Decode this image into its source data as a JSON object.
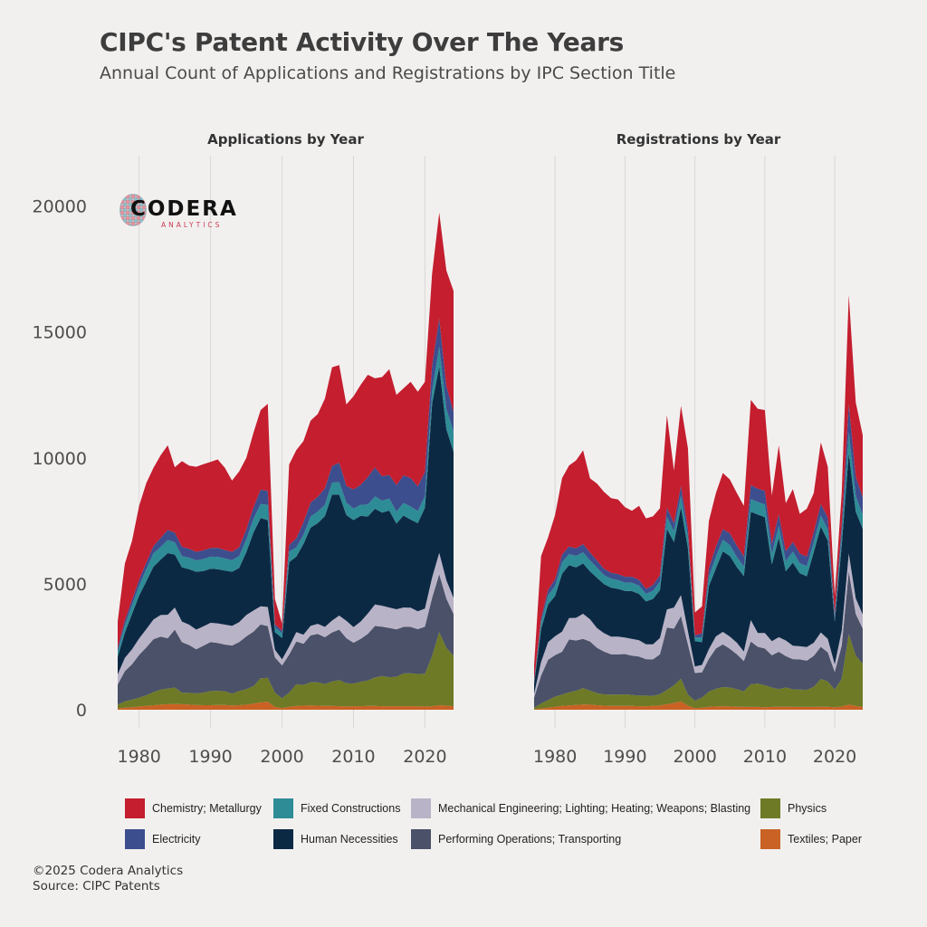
{
  "title": "CIPC's Patent Activity Over The Years",
  "subtitle": "Annual Count of Applications and Registrations by IPC Section Title",
  "footer": {
    "copyright": "©2025 Codera Analytics",
    "source": "Source: CIPC Patents"
  },
  "logo": {
    "text": "CODERA",
    "subtext": "ANALYTICS"
  },
  "colors": {
    "Chemistry; Metallurgy": "#c41e2f",
    "Electricity": "#3c4e8e",
    "Fixed Constructions": "#2e8c96",
    "Human Necessities": "#0c2944",
    "Mechanical Engineering; Lighting; Heating; Weapons; Blasting": "#b9b3c7",
    "Performing Operations; Transporting": "#4a5168",
    "Physics": "#6e7a26",
    "Textiles; Paper": "#c96224"
  },
  "legend": {
    "items": [
      "Chemistry; Metallurgy",
      "Fixed Constructions",
      "Mechanical Engineering; Lighting; Heating; Weapons; Blasting",
      "Physics",
      "Electricity",
      "Human Necessities",
      "Performing Operations; Transporting",
      "Textiles; Paper"
    ]
  },
  "chart_data": [
    {
      "type": "area",
      "stacked": true,
      "title": "Applications by Year",
      "xlabel": "",
      "ylabel": "",
      "xlim": [
        1977,
        2024
      ],
      "ylim": [
        0,
        22000
      ],
      "x_ticks": [
        1980,
        1990,
        2000,
        2010,
        2020
      ],
      "y_ticks": [
        0,
        5000,
        10000,
        15000,
        20000
      ],
      "grid": "vertical",
      "x": [
        1977,
        1978,
        1979,
        1980,
        1981,
        1982,
        1983,
        1984,
        1985,
        1986,
        1987,
        1988,
        1989,
        1990,
        1991,
        1992,
        1993,
        1994,
        1995,
        1996,
        1997,
        1998,
        1999,
        2000,
        2001,
        2002,
        2003,
        2004,
        2005,
        2006,
        2007,
        2008,
        2009,
        2010,
        2011,
        2012,
        2013,
        2014,
        2015,
        2016,
        2017,
        2018,
        2019,
        2020,
        2021,
        2022,
        2023,
        2024
      ],
      "series": [
        {
          "name": "Textiles; Paper",
          "values": [
            50,
            80,
            100,
            130,
            150,
            180,
            200,
            220,
            230,
            220,
            200,
            190,
            180,
            180,
            190,
            190,
            170,
            180,
            200,
            240,
            300,
            320,
            120,
            60,
            120,
            150,
            160,
            170,
            160,
            150,
            150,
            140,
            130,
            140,
            140,
            150,
            150,
            140,
            140,
            140,
            140,
            140,
            140,
            130,
            140,
            180,
            160,
            140
          ]
        },
        {
          "name": "Physics",
          "values": [
            150,
            250,
            300,
            350,
            420,
            520,
            600,
            620,
            650,
            460,
            470,
            460,
            500,
            560,
            560,
            540,
            470,
            560,
            620,
            700,
            950,
            950,
            560,
            400,
            560,
            860,
            830,
            920,
            930,
            870,
            970,
            1040,
            920,
            900,
            970,
            1010,
            1130,
            1200,
            1150,
            1170,
            1300,
            1310,
            1280,
            1300,
            2000,
            2900,
            2300,
            2000
          ]
        },
        {
          "name": "Performing Operations; Transporting",
          "values": [
            800,
            1200,
            1400,
            1700,
            1900,
            2100,
            2100,
            2000,
            2300,
            2000,
            1900,
            1750,
            1860,
            1950,
            1900,
            1860,
            1910,
            1950,
            2090,
            2160,
            2140,
            2050,
            1400,
            1300,
            1510,
            1700,
            1630,
            1860,
            1920,
            1860,
            1950,
            2000,
            1790,
            1620,
            1700,
            1850,
            2050,
            1960,
            1960,
            1880,
            1850,
            1840,
            1780,
            1870,
            2300,
            2300,
            1950,
            1660
          ]
        },
        {
          "name": "Mechanical Engineering; Lighting; Heating; Weapons; Blasting",
          "values": [
            400,
            530,
            600,
            650,
            730,
            780,
            860,
            930,
            880,
            820,
            810,
            780,
            770,
            760,
            780,
            790,
            780,
            790,
            850,
            840,
            720,
            760,
            300,
            240,
            320,
            370,
            360,
            380,
            400,
            410,
            470,
            560,
            690,
            620,
            690,
            810,
            850,
            830,
            810,
            800,
            770,
            760,
            710,
            720,
            810,
            850,
            730,
            640
          ]
        },
        {
          "name": "Human Necessities",
          "values": [
            700,
            1000,
            1400,
            1700,
            1900,
            2100,
            2200,
            2450,
            2100,
            2150,
            2200,
            2300,
            2200,
            2150,
            2150,
            2150,
            2150,
            2150,
            2500,
            3100,
            3500,
            3450,
            700,
            850,
            3350,
            3000,
            3600,
            3900,
            4000,
            4400,
            5000,
            4800,
            4200,
            4250,
            4200,
            3850,
            3800,
            3700,
            3850,
            3400,
            3650,
            3500,
            3500,
            4000,
            6900,
            7400,
            6000,
            5800
          ]
        },
        {
          "name": "Fixed Constructions",
          "values": [
            220,
            300,
            350,
            400,
            480,
            530,
            500,
            520,
            490,
            450,
            460,
            450,
            470,
            480,
            490,
            480,
            460,
            470,
            500,
            540,
            560,
            600,
            200,
            180,
            420,
            370,
            360,
            440,
            460,
            450,
            480,
            500,
            500,
            460,
            440,
            480,
            490,
            470,
            480,
            480,
            500,
            520,
            480,
            460,
            510,
            790,
            800,
            810
          ]
        },
        {
          "name": "Electricity",
          "values": [
            130,
            180,
            200,
            230,
            260,
            290,
            360,
            400,
            380,
            370,
            350,
            340,
            350,
            340,
            360,
            330,
            330,
            350,
            400,
            450,
            570,
            560,
            110,
            100,
            260,
            360,
            500,
            550,
            590,
            650,
            660,
            770,
            660,
            760,
            790,
            1090,
            1150,
            970,
            930,
            1050,
            1100,
            1130,
            980,
            960,
            1000,
            1120,
            900,
            780
          ]
        },
        {
          "name": "Chemistry; Metallurgy",
          "values": [
            1050,
            2260,
            2350,
            2940,
            3160,
            3100,
            3280,
            3360,
            2600,
            3400,
            3300,
            3380,
            3420,
            3420,
            3510,
            3270,
            2830,
            3010,
            2840,
            2970,
            3160,
            3460,
            1010,
            290,
            3200,
            3500,
            3230,
            3260,
            3280,
            3560,
            3920,
            3880,
            3230,
            3700,
            3970,
            4060,
            3540,
            3940,
            4200,
            3580,
            3450,
            3820,
            3760,
            3580,
            3650,
            4200,
            4600,
            4800
          ]
        }
      ]
    },
    {
      "type": "area",
      "stacked": true,
      "title": "Registrations by Year",
      "xlabel": "",
      "ylabel": "",
      "xlim": [
        1977,
        2024
      ],
      "ylim": [
        0,
        22000
      ],
      "x_ticks": [
        1980,
        1990,
        2000,
        2010,
        2020
      ],
      "y_ticks": [
        0,
        5000,
        10000,
        15000,
        20000
      ],
      "grid": "vertical",
      "x": [
        1977,
        1978,
        1979,
        1980,
        1981,
        1982,
        1983,
        1984,
        1985,
        1986,
        1987,
        1988,
        1989,
        1990,
        1991,
        1992,
        1993,
        1994,
        1995,
        1996,
        1997,
        1998,
        1999,
        2000,
        2001,
        2002,
        2003,
        2004,
        2005,
        2006,
        2007,
        2008,
        2009,
        2010,
        2011,
        2012,
        2013,
        2014,
        2015,
        2016,
        2017,
        2018,
        2019,
        2020,
        2021,
        2022,
        2023,
        2024
      ],
      "series": [
        {
          "name": "Textiles; Paper",
          "values": [
            20,
            50,
            80,
            120,
            150,
            170,
            190,
            210,
            200,
            180,
            160,
            150,
            150,
            150,
            150,
            140,
            140,
            150,
            170,
            220,
            270,
            330,
            160,
            60,
            80,
            120,
            130,
            140,
            130,
            120,
            110,
            110,
            110,
            100,
            110,
            120,
            120,
            110,
            110,
            110,
            110,
            120,
            120,
            100,
            130,
            200,
            150,
            120
          ]
        },
        {
          "name": "Physics",
          "values": [
            60,
            200,
            300,
            400,
            450,
            520,
            560,
            650,
            560,
            480,
            450,
            450,
            450,
            460,
            440,
            420,
            420,
            400,
            450,
            560,
            700,
            900,
            440,
            300,
            400,
            600,
            700,
            760,
            750,
            700,
            620,
            900,
            930,
            870,
            770,
            700,
            760,
            700,
            690,
            680,
            800,
            1100,
            1000,
            700,
            1100,
            2800,
            2000,
            1700
          ]
        },
        {
          "name": "Performing Operations; Transporting",
          "values": [
            400,
            1100,
            1600,
            1650,
            1700,
            2100,
            2000,
            1950,
            1950,
            1800,
            1700,
            1600,
            1600,
            1600,
            1560,
            1550,
            1450,
            1450,
            1580,
            2480,
            2250,
            2490,
            2000,
            1100,
            1000,
            1300,
            1600,
            1700,
            1540,
            1380,
            1200,
            1700,
            1460,
            1460,
            1280,
            1480,
            1250,
            1200,
            1200,
            1160,
            1230,
            1280,
            1160,
            700,
            1320,
            2500,
            1650,
            1400
          ]
        },
        {
          "name": "Mechanical Engineering; Lighting; Heating; Weapons; Blasting",
          "values": [
            150,
            550,
            700,
            750,
            800,
            850,
            900,
            1000,
            880,
            780,
            730,
            700,
            700,
            660,
            660,
            650,
            590,
            600,
            650,
            720,
            840,
            830,
            520,
            260,
            300,
            390,
            480,
            490,
            480,
            460,
            380,
            850,
            550,
            620,
            560,
            580,
            620,
            530,
            520,
            540,
            520,
            570,
            530,
            300,
            590,
            700,
            620,
            560
          ]
        },
        {
          "name": "Human Necessities",
          "values": [
            400,
            1300,
            1500,
            1600,
            2300,
            2100,
            2000,
            2000,
            1900,
            2000,
            1950,
            1950,
            1900,
            1850,
            1900,
            1840,
            1700,
            1800,
            1900,
            3200,
            2600,
            3500,
            3300,
            1000,
            900,
            2500,
            2700,
            3200,
            3200,
            3000,
            3000,
            4300,
            4700,
            4600,
            3050,
            3950,
            2750,
            3300,
            2900,
            2810,
            3600,
            4200,
            3900,
            1700,
            3400,
            4000,
            3450,
            3400
          ]
        },
        {
          "name": "Fixed Constructions",
          "values": [
            80,
            280,
            360,
            400,
            460,
            440,
            460,
            440,
            440,
            400,
            360,
            350,
            350,
            330,
            330,
            330,
            300,
            320,
            340,
            480,
            420,
            460,
            450,
            140,
            200,
            380,
            460,
            460,
            440,
            400,
            380,
            500,
            500,
            500,
            420,
            470,
            400,
            440,
            400,
            400,
            400,
            440,
            460,
            140,
            420,
            820,
            620,
            560
          ]
        },
        {
          "name": "Electricity",
          "values": [
            40,
            150,
            220,
            260,
            300,
            300,
            300,
            330,
            310,
            280,
            250,
            240,
            240,
            230,
            240,
            230,
            200,
            230,
            260,
            360,
            330,
            380,
            330,
            100,
            150,
            330,
            400,
            420,
            460,
            450,
            400,
            560,
            530,
            540,
            400,
            460,
            400,
            380,
            380,
            380,
            380,
            460,
            460,
            180,
            380,
            1100,
            760,
            700
          ]
        },
        {
          "name": "Chemistry; Metallurgy",
          "values": [
            620,
            2470,
            2080,
            2560,
            3040,
            3220,
            3490,
            3720,
            2950,
            3060,
            3050,
            2960,
            2960,
            2760,
            2620,
            2940,
            2800,
            2730,
            2650,
            3680,
            2090,
            3180,
            3190,
            900,
            1070,
            1880,
            2130,
            2230,
            2140,
            2090,
            2010,
            3380,
            3170,
            3210,
            1910,
            2740,
            1900,
            2100,
            1580,
            1900,
            1560,
            2450,
            2020,
            720,
            1280,
            4350,
            2950,
            2460
          ]
        }
      ]
    }
  ]
}
